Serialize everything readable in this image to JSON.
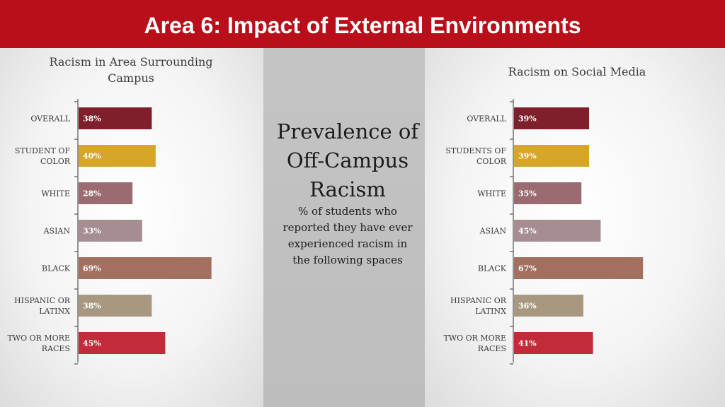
{
  "header": {
    "title": "Area 6: Impact of External Environments"
  },
  "center": {
    "heading_lines": [
      "Prevalence of",
      "Off-Campus",
      "Racism"
    ],
    "subtitle_lines": [
      "% of students who",
      "reported they have ever",
      "experienced racism in",
      "the following spaces"
    ]
  },
  "chart_data": [
    {
      "type": "bar",
      "orientation": "horizontal",
      "title_lines": [
        "Racism in Area Surrounding",
        "Campus"
      ],
      "categories": [
        [
          "OVERALL"
        ],
        [
          "STUDENT OF",
          "COLOR"
        ],
        [
          "WHITE"
        ],
        [
          "ASIAN"
        ],
        [
          "BLACK"
        ],
        [
          "HISPANIC OR",
          "LATINX"
        ],
        [
          "TWO OR MORE",
          "RACES"
        ]
      ],
      "values": [
        38,
        40,
        28,
        33,
        69,
        38,
        45
      ],
      "value_labels": [
        "38%",
        "40%",
        "28%",
        "33%",
        "69%",
        "38%",
        "45%"
      ],
      "colors": [
        "#7e1f2b",
        "#d6a52a",
        "#9c6b71",
        "#a58d92",
        "#a3705f",
        "#a99880",
        "#c22b3a"
      ],
      "xlim": [
        0,
        100
      ],
      "grid": false
    },
    {
      "type": "bar",
      "orientation": "horizontal",
      "title_lines": [
        "Racism on Social Media"
      ],
      "categories": [
        [
          "OVERALL"
        ],
        [
          "STUDENTS OF",
          "COLOR"
        ],
        [
          "WHITE"
        ],
        [
          "ASIAN"
        ],
        [
          "BLACK"
        ],
        [
          "HISPANIC OR",
          "LATINX"
        ],
        [
          "TWO OR MORE",
          "RACES"
        ]
      ],
      "values": [
        39,
        39,
        35,
        45,
        67,
        36,
        41
      ],
      "value_labels": [
        "39%",
        "39%",
        "35%",
        "45%",
        "67%",
        "36%",
        "41%"
      ],
      "colors": [
        "#7e1f2b",
        "#d6a52a",
        "#9c6b71",
        "#a58d92",
        "#a3705f",
        "#a99880",
        "#c22b3a"
      ],
      "xlim": [
        0,
        100
      ],
      "grid": false
    }
  ]
}
